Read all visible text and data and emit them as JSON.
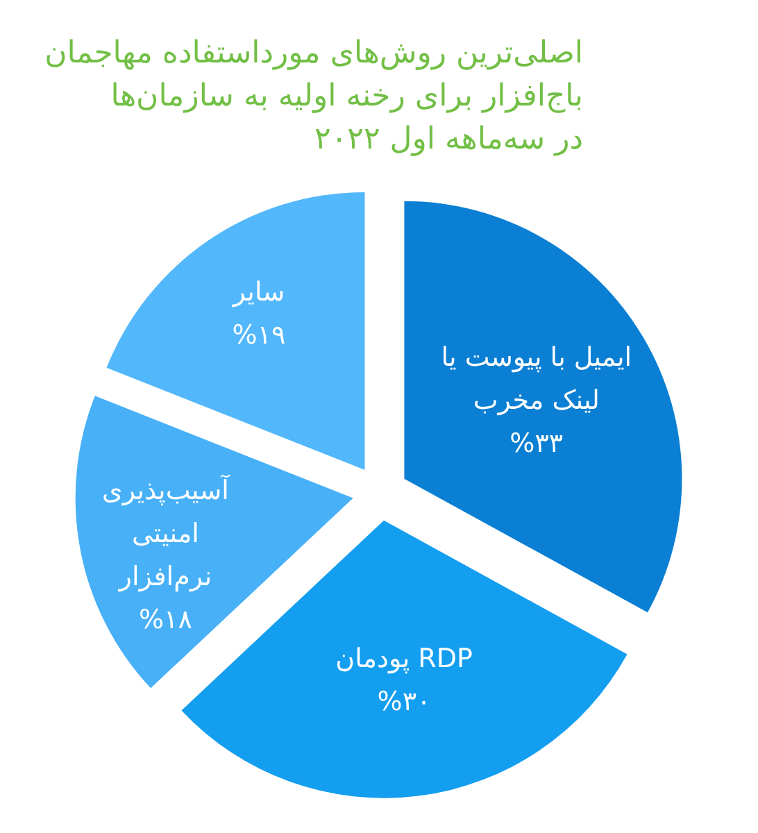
{
  "chart_data": {
    "type": "pie",
    "title": "اصلی‌ترین روش‌های مورداستفاده مهاجمان\nباج‌افزار برای رخنه اولیه به سازمان‌ها\nدر سه‌ماهه اول ۲۰۲۲",
    "categories": [
      "ایمیل با پیوست یا لینک مخرب",
      "پودمان RDP",
      "آسیب‌پذیری امنیتی نرم‌افزار",
      "سایر"
    ],
    "values": [
      33,
      30,
      18,
      19
    ],
    "value_labels": [
      "%۳۳",
      "%۳۰",
      "%۱۸",
      "%۱۹"
    ],
    "colors": [
      "#0a7fd3",
      "#139ef0",
      "#47b0f7",
      "#52b7fb"
    ]
  }
}
